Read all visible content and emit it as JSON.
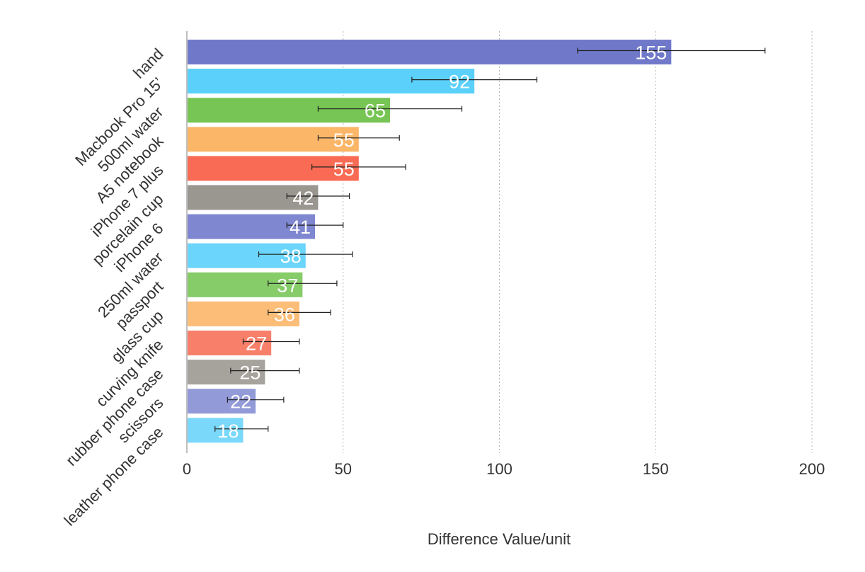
{
  "chart_data": {
    "type": "bar",
    "orientation": "horizontal",
    "categories": [
      "hand",
      "Macbook Pro 15’",
      "500ml water",
      "A5 notebook",
      "iPhone 7 plus",
      "porcelain cup",
      "iPhone 6",
      "250ml water",
      "passport",
      "glass cup",
      "curving knife",
      "rubber phone case",
      "scissors",
      "leather phone case"
    ],
    "values": [
      155,
      92,
      65,
      55,
      55,
      42,
      41,
      38,
      37,
      36,
      27,
      25,
      22,
      18
    ],
    "error_low": [
      125,
      72,
      42,
      42,
      40,
      32,
      32,
      23,
      26,
      26,
      18,
      14,
      13,
      9
    ],
    "error_high": [
      185,
      112,
      88,
      68,
      70,
      52,
      50,
      53,
      48,
      46,
      36,
      36,
      31,
      26
    ],
    "data_labels": [
      "155",
      "92",
      "65",
      "55",
      "55",
      "42",
      "41",
      "38",
      "37",
      "36",
      "27",
      "25",
      "22",
      "18"
    ],
    "colors": [
      "#7079c9",
      "#5ad0fa",
      "#77c554",
      "#fbb668",
      "#f96b54",
      "#9a9690",
      "#7f87d0",
      "#6cd5fb",
      "#86cc68",
      "#fbbd78",
      "#f8806b",
      "#a6a29c",
      "#939ad8",
      "#7ad8fb"
    ],
    "xlabel": "Difference Value/unit",
    "ylabel": "",
    "title": "",
    "xlim": [
      0,
      200
    ],
    "xticks": [
      0,
      50,
      100,
      150,
      200
    ],
    "xtick_labels": [
      "0",
      "50",
      "100",
      "150",
      "200"
    ],
    "grid": "vertical dotted",
    "legend": "none"
  }
}
